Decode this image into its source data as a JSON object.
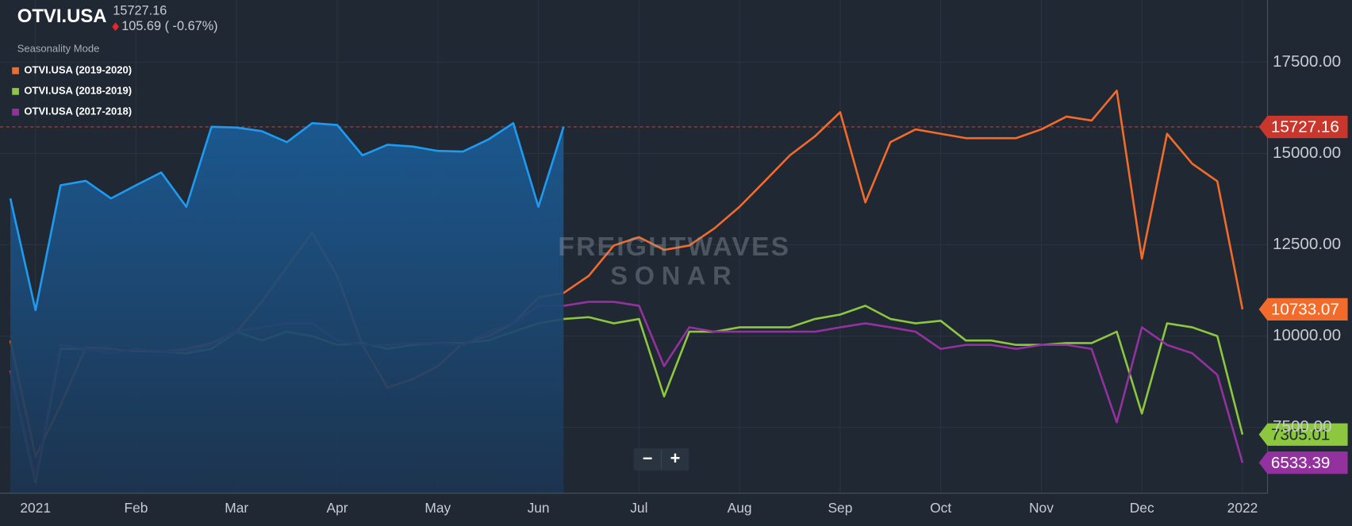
{
  "chart_data": {
    "type": "line",
    "title": "OTVI.USA",
    "change": "105.69 ( -0.67%)",
    "subtitle": "Seasonality Mode",
    "watermark": [
      "FREIGHTWAVES",
      "SONAR"
    ],
    "price_line_color": "#c9372c",
    "grid": true,
    "categories": [
      null,
      "2021",
      null,
      null,
      null,
      "Feb",
      null,
      null,
      null,
      "Mar",
      null,
      null,
      null,
      "Apr",
      null,
      null,
      null,
      "May",
      null,
      null,
      null,
      "Jun",
      null,
      null,
      null,
      "Jul",
      null,
      null,
      null,
      "Aug",
      null,
      null,
      null,
      "Sep",
      null,
      null,
      null,
      "Oct",
      null,
      null,
      null,
      "Nov",
      null,
      null,
      null,
      "Dec",
      null,
      null,
      null,
      "2022"
    ],
    "ylim": [
      5700,
      19200
    ],
    "yticks": [
      {
        "value": 7500,
        "label": "7500.00"
      },
      {
        "value": 10000,
        "label": "10000.00"
      },
      {
        "value": 12500,
        "label": "12500.00"
      },
      {
        "value": 15000,
        "label": "15000.00"
      },
      {
        "value": 17500,
        "label": "17500.00"
      }
    ],
    "series": [
      {
        "color": "#1e9bf0",
        "area": true,
        "values": [
          13770,
          10710,
          14130,
          14250,
          13770,
          14130,
          14480,
          13540,
          15730,
          15710,
          15610,
          15310,
          15830,
          15780,
          14950,
          15240,
          15190,
          15070,
          15050,
          15380,
          15830,
          13540,
          15727.16,
          null,
          null,
          null,
          null,
          null,
          null,
          null,
          null,
          null,
          null,
          null,
          null,
          null,
          null,
          null,
          null,
          null,
          null,
          null,
          null,
          null,
          null,
          null,
          null,
          null,
          null,
          null
        ]
      },
      {
        "name": "OTVI.USA (2019-2020)",
        "color": "#f26b2a",
        "values": [
          9880,
          6700,
          8110,
          9690,
          9650,
          9580,
          9580,
          9650,
          9810,
          10120,
          10940,
          11890,
          12830,
          11650,
          9760,
          8590,
          8820,
          9180,
          9810,
          10000,
          10350,
          11060,
          11180,
          11650,
          12480,
          12710,
          12360,
          12480,
          12950,
          13540,
          14240,
          14950,
          15470,
          16130,
          13660,
          15310,
          15660,
          15540,
          15420,
          15420,
          15420,
          15660,
          16010,
          15900,
          16720,
          12120,
          15540,
          14720,
          14240,
          10733.07
        ]
      },
      {
        "name": "OTVI.USA (2018-2019)",
        "color": "#8dc63f",
        "values": [
          9060,
          5990,
          9650,
          9650,
          9530,
          9650,
          9580,
          9530,
          9650,
          10120,
          9880,
          10120,
          10000,
          9760,
          9810,
          9650,
          9760,
          9810,
          9810,
          9880,
          10120,
          10350,
          10470,
          10520,
          10350,
          10470,
          8350,
          10120,
          10120,
          10240,
          10240,
          10240,
          10470,
          10590,
          10830,
          10470,
          10350,
          10420,
          9880,
          9880,
          9760,
          9760,
          9810,
          9810,
          10120,
          7880,
          10350,
          10240,
          10000,
          7305.01
        ]
      },
      {
        "name": "OTVI.USA (2017-2018)",
        "color": "#93329e",
        "values": [
          9060,
          6110,
          9760,
          9650,
          9530,
          9650,
          9580,
          9580,
          9760,
          10120,
          10240,
          10350,
          10350,
          9880,
          9760,
          9760,
          9810,
          9810,
          9760,
          10120,
          10350,
          10830,
          10830,
          10940,
          10940,
          10830,
          9180,
          10240,
          10120,
          10120,
          10120,
          10120,
          10120,
          10240,
          10350,
          10240,
          10120,
          9650,
          9760,
          9760,
          9650,
          9760,
          9760,
          9650,
          7640,
          10240,
          9760,
          9530,
          8940,
          6533.39
        ]
      }
    ]
  },
  "controls": {
    "zoom_out": "−",
    "zoom_in": "+"
  }
}
